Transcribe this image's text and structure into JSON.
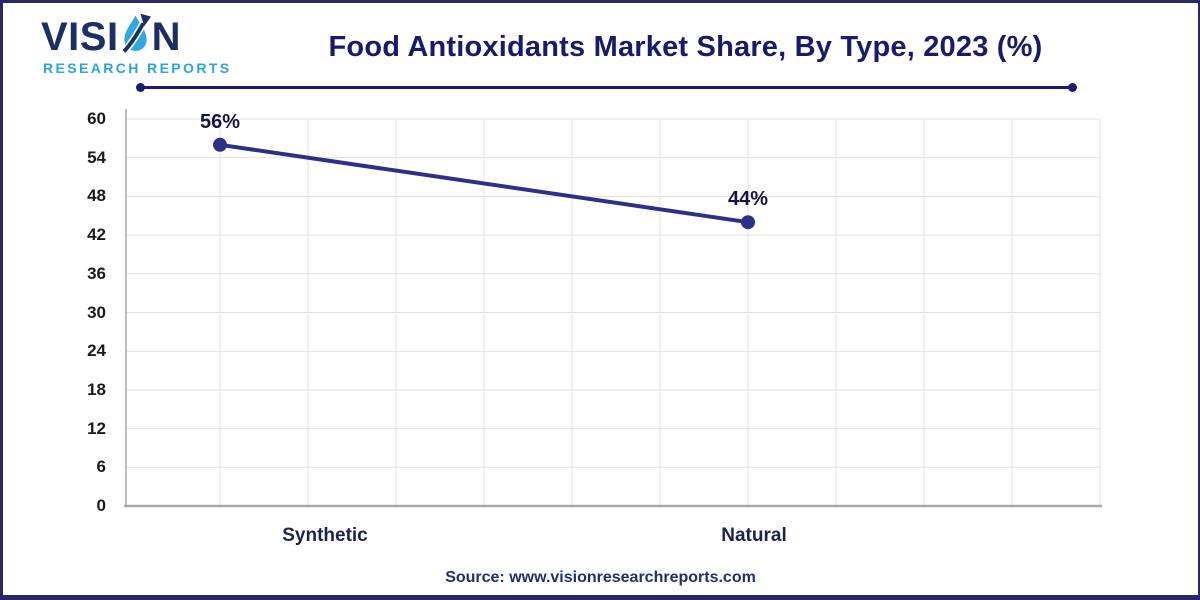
{
  "logo": {
    "brand_prefix": "VISI",
    "brand_suffix": "N",
    "subtitle": "RESEARCH REPORTS"
  },
  "header": {
    "title": "Food Antioxidants Market Share, By Type, 2023 (%)"
  },
  "footer": {
    "source": "Source: www.visionresearchreports.com"
  },
  "chart_data": {
    "type": "line",
    "title": "Food Antioxidants Market Share, By Type, 2023 (%)",
    "categories": [
      "Synthetic",
      "Natural"
    ],
    "values": [
      56,
      44
    ],
    "point_labels": [
      "56%",
      "44%"
    ],
    "xlabel": "",
    "ylabel": "",
    "ylim": [
      0,
      60
    ],
    "yticks": [
      0,
      6,
      12,
      18,
      24,
      30,
      36,
      42,
      48,
      54,
      60
    ],
    "grid": true,
    "legend": "none",
    "marker": "circle",
    "line_color": "#2b3189"
  },
  "colors": {
    "page_border": "#2b2767",
    "title": "#1a1a6b",
    "brand_navy": "#1d2e63",
    "brand_blue": "#2ba4dd",
    "series_line": "#2b3189",
    "title_rule": "#1b1b70",
    "gridline": "#e1e1e1",
    "axis_line": "#a9a9a9",
    "tick_label": "#1a1a1a",
    "category_label": "#1b2350",
    "point_label": "#15153d",
    "source_text": "#203070"
  }
}
